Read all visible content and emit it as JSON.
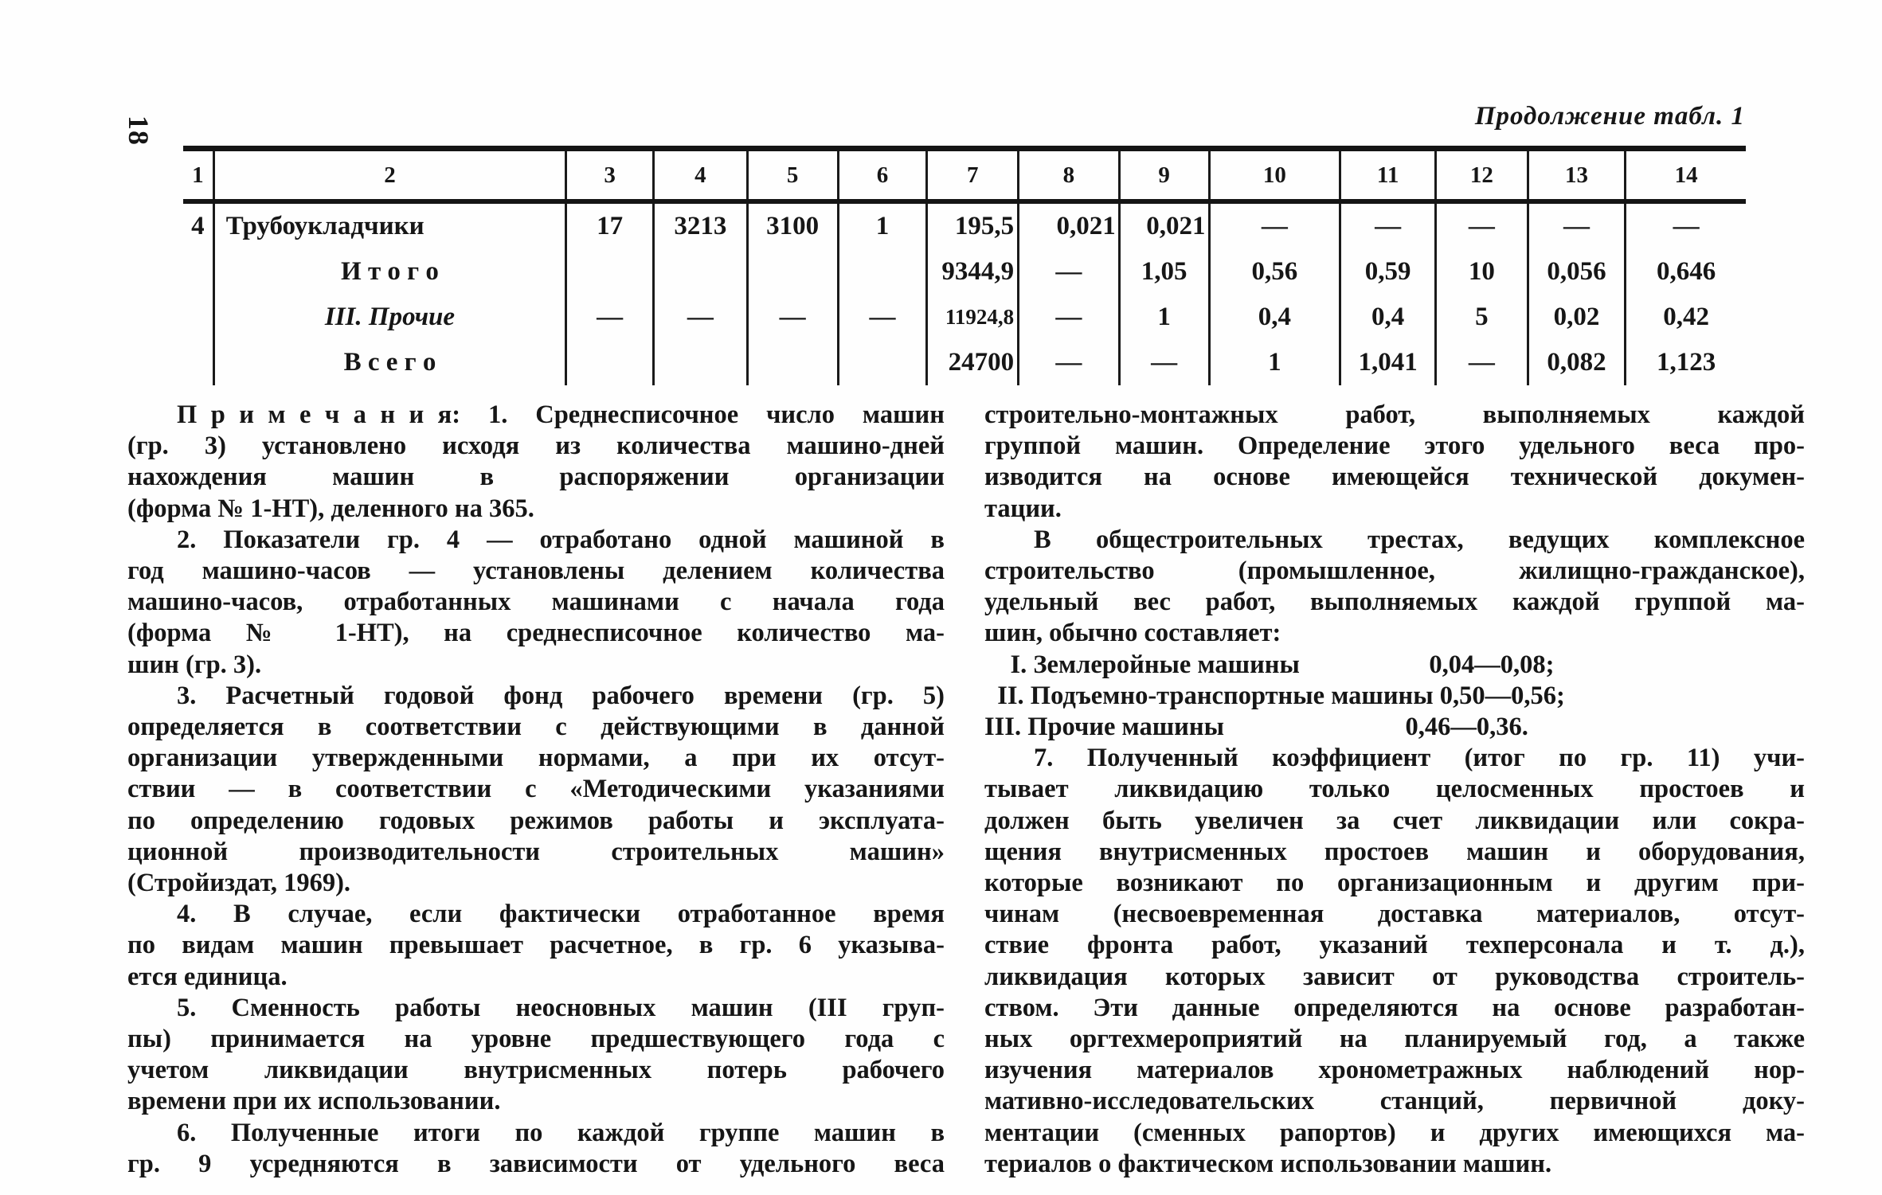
{
  "colors": {
    "ink": "#161616",
    "paper": "#fefefe"
  },
  "page": {
    "number": "18",
    "continuation_label": "Продолжение табл. 1"
  },
  "table": {
    "column_headers": [
      "1",
      "2",
      "3",
      "4",
      "5",
      "6",
      "7",
      "8",
      "9",
      "10",
      "11",
      "12",
      "13",
      "14"
    ],
    "rows": [
      [
        "4",
        "Трубоукладчики",
        "17",
        "3213",
        "3100",
        "1",
        "195,5",
        "0,021",
        "0,021",
        "—",
        "—",
        "—",
        "—",
        "—"
      ],
      [
        "",
        "И т о г о",
        "",
        "",
        "",
        "",
        "9344,9",
        "—",
        "1,05",
        "0,56",
        "0,59",
        "10",
        "0,056",
        "0,646"
      ],
      [
        "",
        "III. Прочие",
        "—",
        "—",
        "—",
        "—",
        "11924,8",
        "—",
        "1",
        "0,4",
        "0,4",
        "5",
        "0,02",
        "0,42"
      ],
      [
        "",
        "В с е г о",
        "",
        "",
        "",
        "",
        "24700",
        "—",
        "—",
        "1",
        "1,041",
        "—",
        "0,082",
        "1,123"
      ]
    ]
  },
  "notes": {
    "left_column": [
      {
        "indent": true,
        "lines": [
          "П р и м е ч а н и я:  1.  Среднесписочное  число  машин",
          "(гр. 3) установлено исходя из количества машино-дней",
          "нахождения машин в распоряжении организации",
          "(форма № 1-НТ), деленного на 365."
        ]
      },
      {
        "indent": true,
        "lines": [
          "2. Показатели гр. 4 — отработано одной машиной в",
          "год машино-часов — установлены делением количества",
          "машино-часов, отработанных машинами с начала года",
          "(форма № 1-НТ), на среднесписочное количество ма-",
          "шин (гр. 3)."
        ]
      },
      {
        "indent": true,
        "lines": [
          "3. Расчетный годовой фонд рабочего времени (гр. 5)",
          "определяется в соответствии с действующими в данной",
          "организации утвержденными нормами, а при их отсут-",
          "ствии — в соответствии с «Методическими указаниями",
          "по определению годовых режимов работы и эксплуата-",
          "ционной производительности строительных машин»",
          "(Стройиздат, 1969)."
        ]
      },
      {
        "indent": true,
        "lines": [
          "4. В случае, если фактически отработанное время",
          "по видам машин превышает расчетное, в гр. 6 указыва-",
          "ется единица."
        ]
      },
      {
        "indent": true,
        "lines": [
          "5. Сменность работы неосновных машин (III груп-",
          "пы) принимается на уровне предшествующего года с",
          "учетом ликвидации внутрисменных потерь рабочего",
          "времени при их использовании."
        ]
      },
      {
        "indent": true,
        "continues": true,
        "lines": [
          "6. Полученные итоги по каждой группе машин в",
          "гр. 9 усредняются в зависимости от удельного веса"
        ]
      }
    ],
    "right_column": [
      {
        "indent": false,
        "lines": [
          "строительно-монтажных работ, выполняемых каждой",
          "группой машин. Определение этого удельного веса про-",
          "изводится на основе имеющейся технической докумен-",
          "тации."
        ]
      },
      {
        "indent": true,
        "lines": [
          "В общестроительных трестах, ведущих комплексное",
          "строительство (промышленное, жилищно-гражданское),",
          "удельный вес работ, выполняемых каждой группой ма-",
          "шин, обычно составляет:"
        ]
      },
      {
        "indent": false,
        "nojustify": true,
        "lines": [
          "  I. Землеройные машины     0,04—0,08;",
          " II. Подъемно-транспортные машины 0,50—0,56;",
          "III. Прочие машины       0,46—0,36."
        ]
      },
      {
        "indent": true,
        "lines": [
          "7. Полученный коэффициент (итог по гр. 11) учи-",
          "тывает ликвидацию только целосменных простоев и",
          "должен быть увеличен за счет ликвидации или сокра-",
          "щения внутрисменных простоев машин и оборудования,",
          "которые возникают по организационным и другим при-",
          "чинам (несвоевременная доставка материалов, отсут-",
          "ствие фронта работ, указаний техперсонала и т. д.),",
          "ликвидация которых зависит от руководства строитель-",
          "ством. Эти данные определяются на основе разработан-",
          "ных оргтехмероприятий на планируемый год, а также",
          "изучения материалов хронометражных наблюдений нор-",
          "мативно-исследовательских станций, первичной доку-",
          "ментации (сменных рапортов) и других имеющихся ма-",
          "териалов о фактическом использовании машин."
        ]
      }
    ]
  }
}
